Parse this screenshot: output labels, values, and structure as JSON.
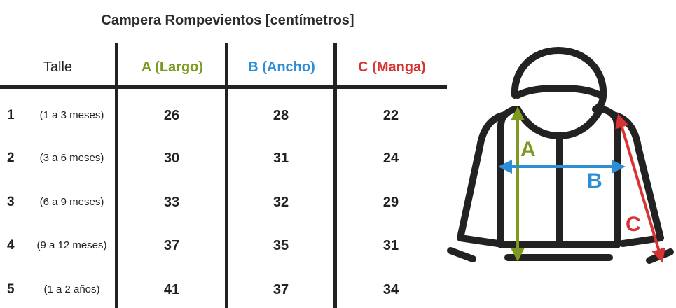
{
  "title": "Campera Rompevientos [centímetros]",
  "headers": {
    "size": "Talle",
    "a": "A (Largo)",
    "b": "B (Ancho)",
    "c": "C (Manga)"
  },
  "colors": {
    "a": "#7d9a1e",
    "b": "#2e8ed4",
    "c": "#d83232",
    "line": "#222222"
  },
  "rows": [
    {
      "num": "1",
      "range": "(1 a 3 meses)",
      "a": "26",
      "b": "28",
      "c": "22"
    },
    {
      "num": "2",
      "range": "(3 a 6 meses)",
      "a": "30",
      "b": "31",
      "c": "24"
    },
    {
      "num": "3",
      "range": "(6 a 9 meses)",
      "a": "33",
      "b": "32",
      "c": "29"
    },
    {
      "num": "4",
      "range": "(9 a 12 meses)",
      "a": "37",
      "b": "35",
      "c": "31"
    },
    {
      "num": "5",
      "range": "(1 a 2 años)",
      "a": "41",
      "b": "37",
      "c": "34"
    }
  ],
  "diagram": {
    "label_a": "A",
    "label_b": "B",
    "label_c": "C",
    "icon": "hooded-jacket-icon"
  }
}
